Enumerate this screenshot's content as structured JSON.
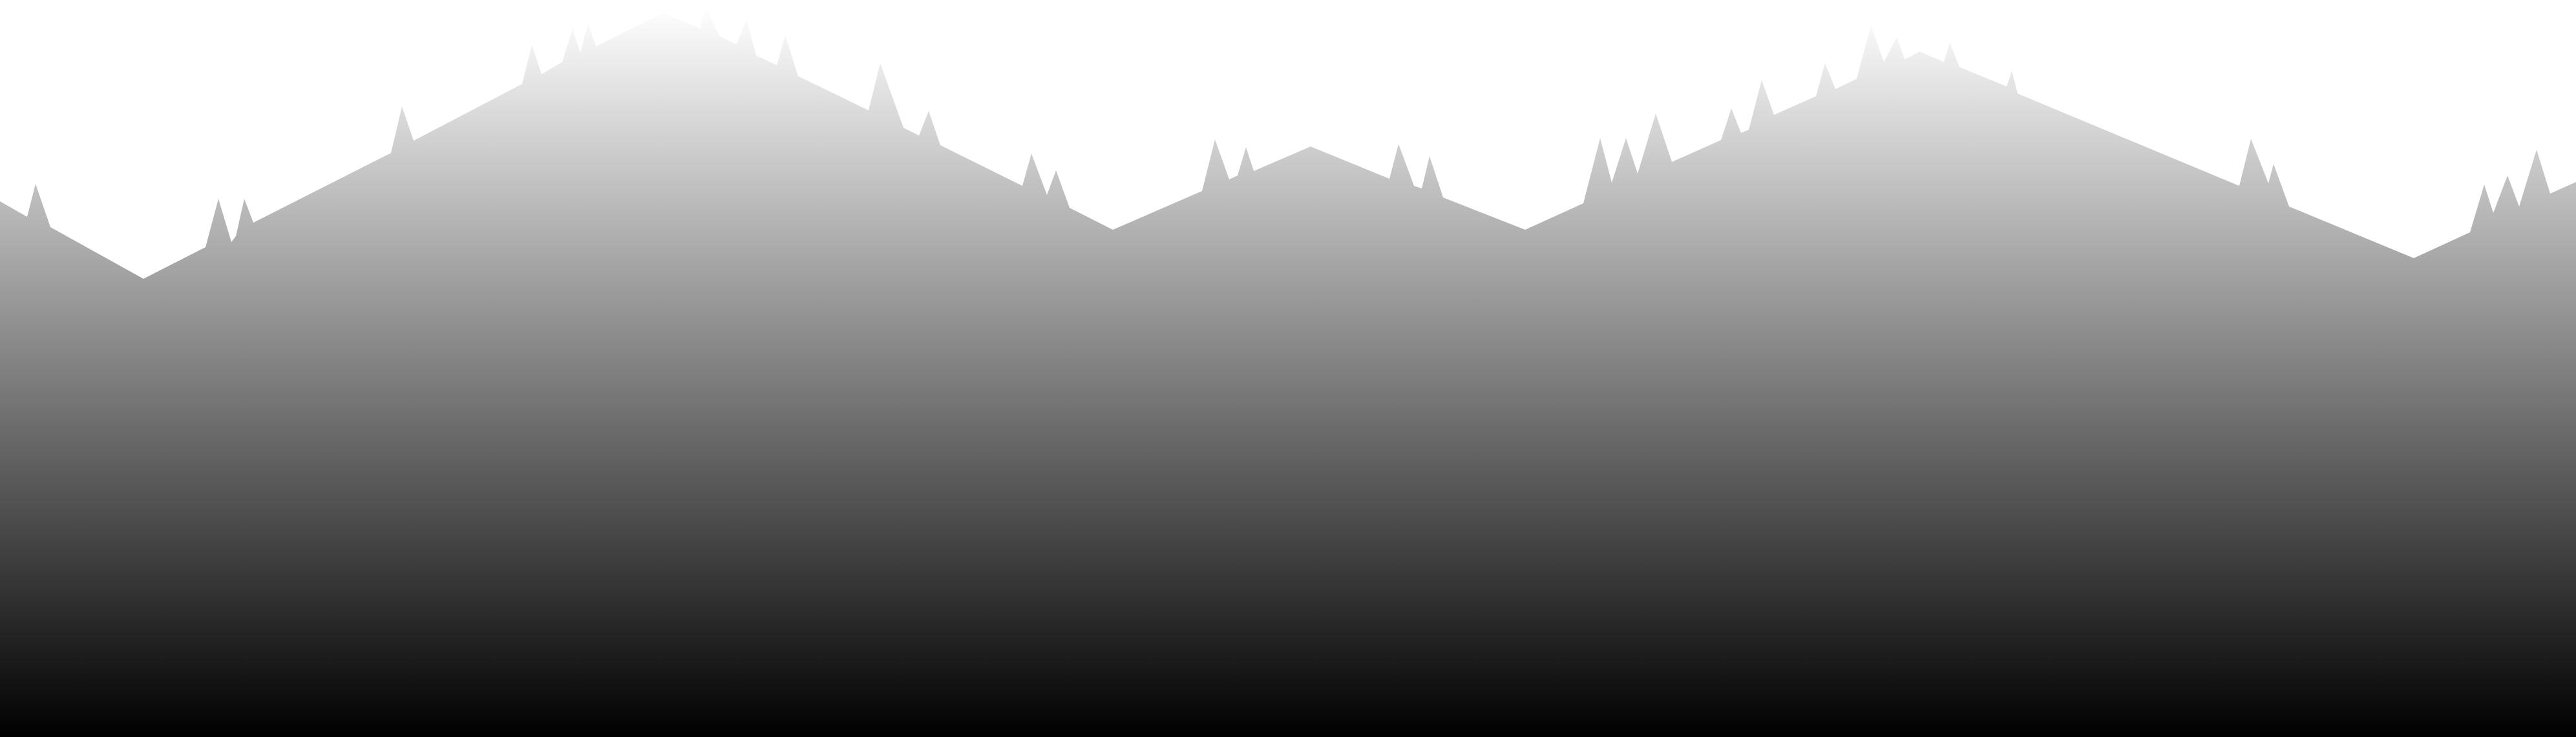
{
  "scene": {
    "background_color": "#ffffff",
    "gradient": {
      "top_color": "#ffffff",
      "bottom_color": "#000000"
    }
  }
}
